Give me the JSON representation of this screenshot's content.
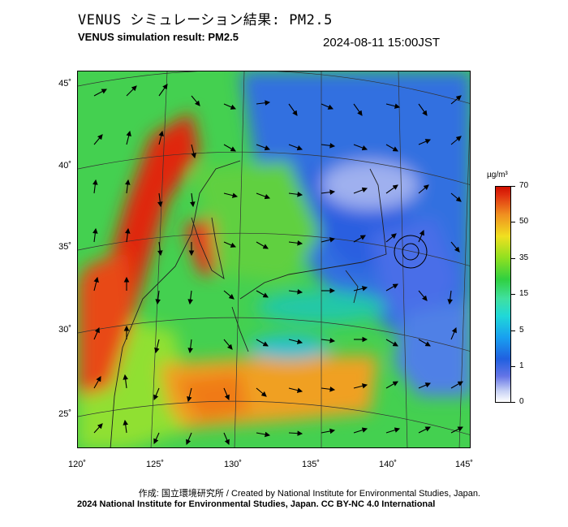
{
  "header": {
    "title_jp": "VENUS シミュレーション結果: PM2.5",
    "title_en": "VENUS simulation result: PM2.5",
    "timestamp": "2024-08-11 15:00JST"
  },
  "map": {
    "lat_labels": [
      "45˚",
      "40˚",
      "35˚",
      "30˚",
      "25˚"
    ],
    "lon_labels": [
      "120˚",
      "125˚",
      "130˚",
      "135˚",
      "140˚",
      "145˚"
    ]
  },
  "colorbar": {
    "unit": "µg/m³",
    "labels": [
      "70",
      "50",
      "35",
      "15",
      "5",
      "1",
      "0"
    ]
  },
  "footer": {
    "credit": "作成: 国立環境研究所 / Created by National Institute for Environmental Studies, Japan.",
    "license": "2024 National Institute for Environmental Studies, Japan. CC BY-NC 4.0 International"
  },
  "colors": {
    "high": "#d01000",
    "mid": "#30d040",
    "low": "#2060e0",
    "zero": "#ffffff"
  }
}
